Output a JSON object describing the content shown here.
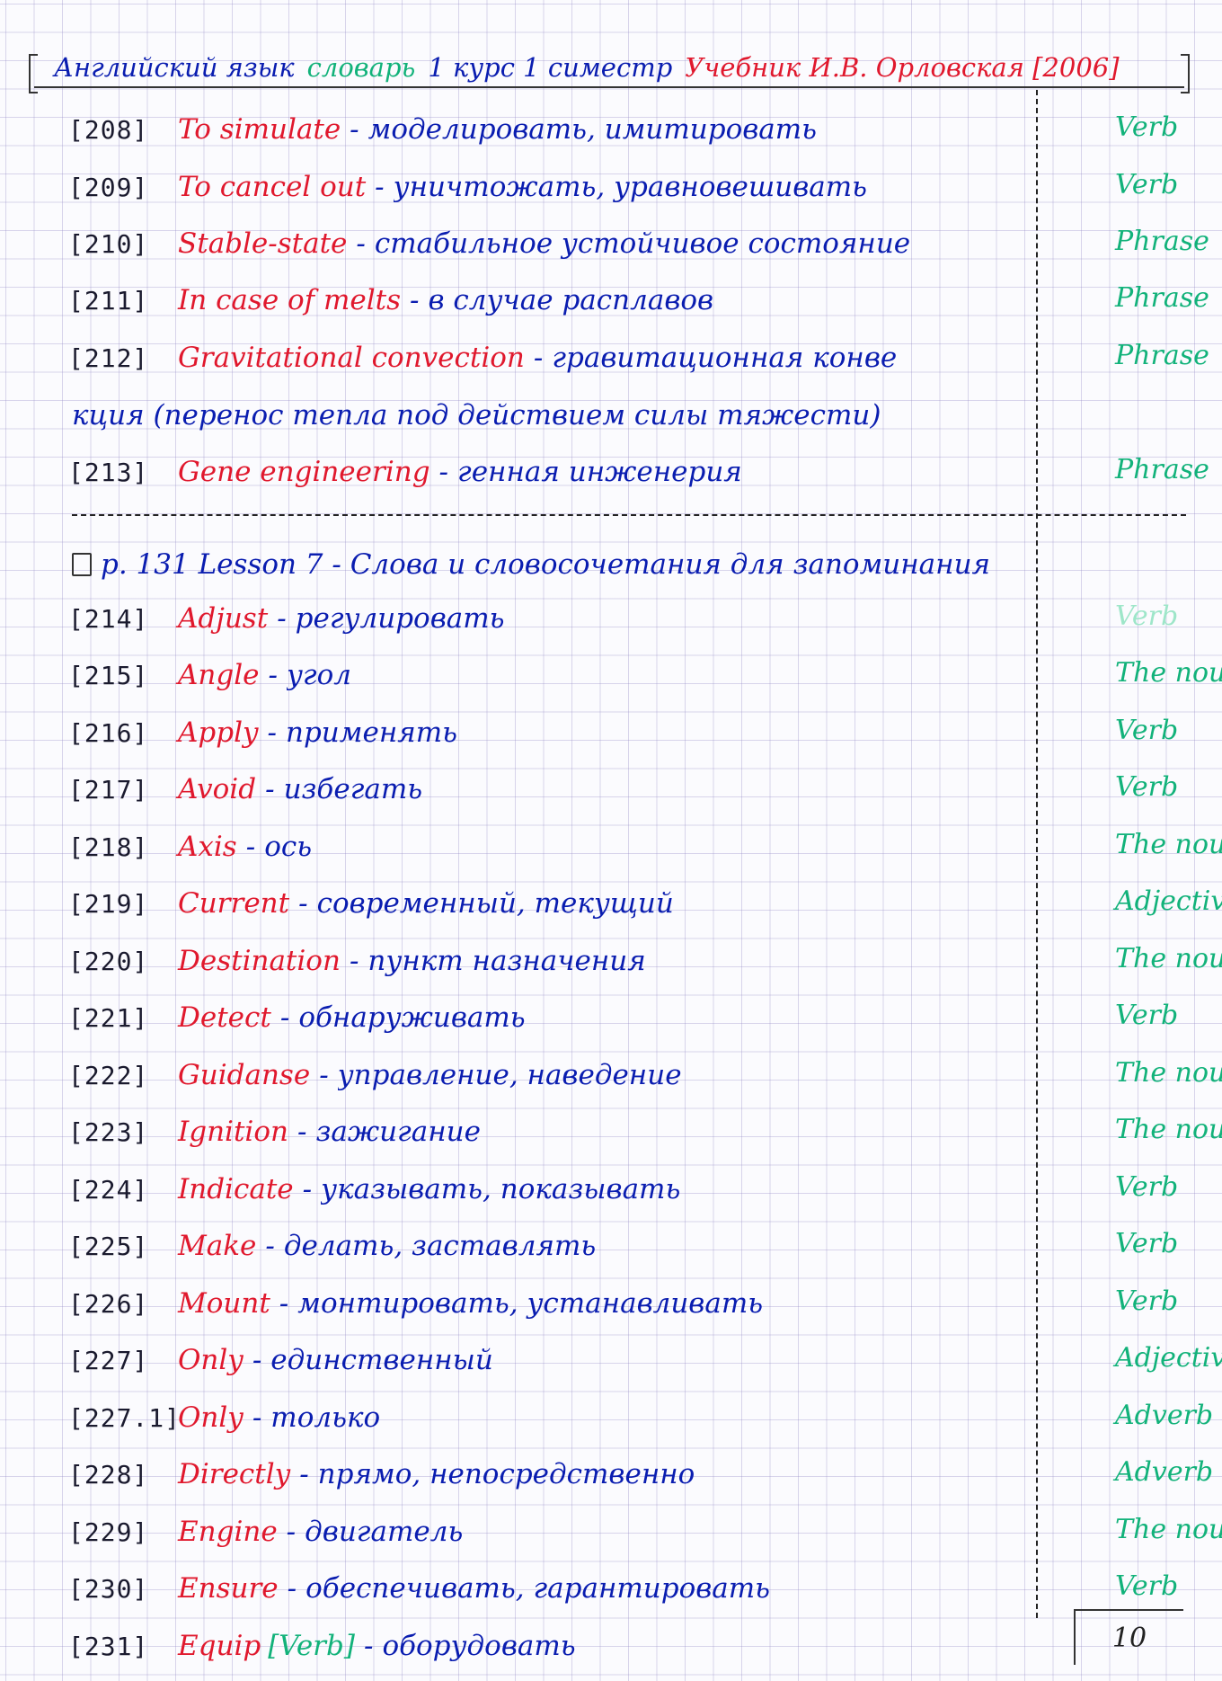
{
  "header": {
    "part1": "Английский язык",
    "part2": "словарь",
    "part3": "1 курс 1 симестр",
    "part4": "Учебник И.В. Орловская [2006]",
    "colors": {
      "part1": "#0a1db0",
      "part2": "#12b27a",
      "part3": "#0a1db0",
      "part4": "#e0182d"
    }
  },
  "entries": [
    {
      "num": "[208]",
      "term": "To simulate",
      "trans": "моделировать, имитировать",
      "pos": "Verb"
    },
    {
      "num": "[209]",
      "term": "To cancel out",
      "trans": "уничтожать, уравновешивать",
      "pos": "Verb"
    },
    {
      "num": "[210]",
      "term": "Stable-state",
      "trans": "стабильное устойчивое состояние",
      "pos": "Phrase"
    },
    {
      "num": "[211]",
      "term": "In case of melts",
      "trans": "в случае расплавов",
      "pos": "Phrase"
    },
    {
      "num": "[212]",
      "term": "Gravitational convection",
      "trans": "гравитационная конве",
      "pos": "Phrase"
    },
    {
      "num": "[213]",
      "term": "Gene engineering",
      "trans": "генная инженерия",
      "pos": "Phrase"
    }
  ],
  "continuation": "кция (перенос тепла под действием силы тяжести)",
  "lesson": "p. 131 Lesson 7 - Слова и словосочетания для запоминания",
  "lesson_entries": [
    {
      "num": "[214]",
      "term": "Adjust",
      "trans": "регулировать",
      "pos": "Verb",
      "faint": true
    },
    {
      "num": "[215]",
      "term": "Angle",
      "trans": "угол",
      "pos": "The noun"
    },
    {
      "num": "[216]",
      "term": "Apply",
      "trans": "применять",
      "pos": "Verb"
    },
    {
      "num": "[217]",
      "term": "Avoid",
      "trans": "избегать",
      "pos": "Verb"
    },
    {
      "num": "[218]",
      "term": "Axis",
      "trans": "ось",
      "pos": "The noun"
    },
    {
      "num": "[219]",
      "term": "Current",
      "trans": "современный, текущий",
      "pos": "Adjective"
    },
    {
      "num": "[220]",
      "term": "Destination",
      "trans": "пункт назначения",
      "pos": "The noun"
    },
    {
      "num": "[221]",
      "term": "Detect",
      "trans": "обнаруживать",
      "pos": "Verb"
    },
    {
      "num": "[222]",
      "term": "Guidanse",
      "trans": "управление, наведение",
      "pos": "The noun"
    },
    {
      "num": "[223]",
      "term": "Ignition",
      "trans": "зажигание",
      "pos": "The noun"
    },
    {
      "num": "[224]",
      "term": "Indicate",
      "trans": "указывать, показывать",
      "pos": "Verb"
    },
    {
      "num": "[225]",
      "term": "Make",
      "trans": "делать, заставлять",
      "pos": "Verb"
    },
    {
      "num": "[226]",
      "term": "Mount",
      "trans": "монтировать, устанавливать",
      "pos": "Verb"
    },
    {
      "num": "[227]",
      "term": "Only",
      "trans": "единственный",
      "pos": "Adjective"
    },
    {
      "num": "[227.1]",
      "term": "Only",
      "trans": "только",
      "pos": "Adverb"
    },
    {
      "num": "[228]",
      "term": "Directly",
      "trans": "прямо, непосредственно",
      "pos": "Adverb"
    },
    {
      "num": "[229]",
      "term": "Engine",
      "trans": "двигатель",
      "pos": "The noun"
    },
    {
      "num": "[230]",
      "term": "Ensure",
      "trans": "обеспечивать, гарантировать",
      "pos": "Verb"
    }
  ],
  "last_entry": {
    "num": "[231]",
    "term": "Equip",
    "tag": "[Verb]",
    "trans": "оборудовать"
  },
  "page_number": "10",
  "colors": {
    "term": "#e0182d",
    "translation": "#0a1db0",
    "pos": "#12b27a",
    "grid": "#9690c8"
  }
}
